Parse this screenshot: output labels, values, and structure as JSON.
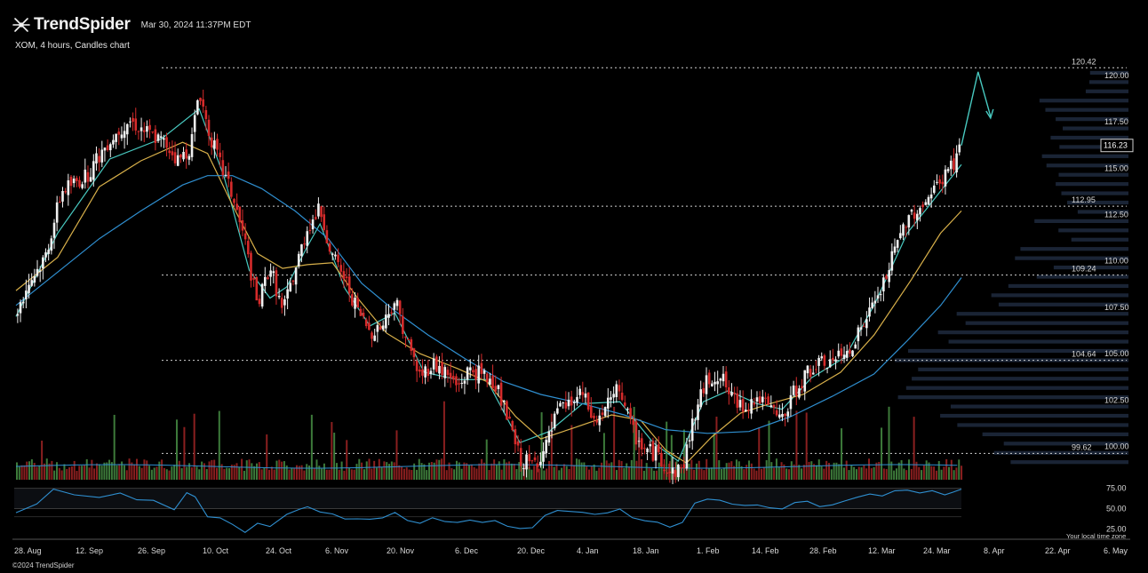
{
  "header": {
    "brand": "TrendSpider",
    "timestamp": "Mar 30, 2024 11:37PM EDT",
    "subtitle": "XOM, 4 hours, Candles chart"
  },
  "footer": {
    "copyright": "©2024 TrendSpider",
    "tz_note": "Your local time zone"
  },
  "colors": {
    "background": "#000000",
    "up_candle": "#f0f0f0",
    "down_candle": "#d62b2b",
    "ma_fast": "#48c9c0",
    "ma_mid": "#d8b04a",
    "ma_slow": "#2f8fd0",
    "volume_up": "#3d7a3a",
    "volume_down": "#8a1f1f",
    "volume_profile": "#1a2435",
    "rsi_line": "#2f8fd0",
    "projection": "#48c9c0"
  },
  "chart_data": {
    "type": "candlestick",
    "symbol": "XOM",
    "interval": "4 hours",
    "y_range": [
      98.2,
      121.2
    ],
    "y_ticks": [
      "120.00",
      "117.50",
      "115.00",
      "112.50",
      "110.00",
      "107.50",
      "105.00",
      "102.50",
      "100.00"
    ],
    "x_ticks": [
      "28. Aug",
      "12. Sep",
      "26. Sep",
      "10. Oct",
      "24. Oct",
      "6. Nov",
      "20. Nov",
      "6. Dec",
      "20. Dec",
      "4. Jan",
      "18. Jan",
      "1. Feb",
      "14. Feb",
      "28. Feb",
      "12. Mar",
      "24. Mar",
      "8. Apr",
      "22. Apr",
      "6. May"
    ],
    "last_price": "116.23",
    "levels": [
      {
        "label": "120.42",
        "value": 120.42
      },
      {
        "label": "112.95",
        "value": 112.95
      },
      {
        "label": "109.24",
        "value": 109.24
      },
      {
        "label": "104.64",
        "value": 104.64
      },
      {
        "label": "99.62",
        "value": 99.62
      }
    ],
    "close_path": [
      {
        "x": 0,
        "y": 107.2
      },
      {
        "x": 6,
        "y": 108.8
      },
      {
        "x": 14,
        "y": 110.2
      },
      {
        "x": 22,
        "y": 113.8
      },
      {
        "x": 34,
        "y": 114.6
      },
      {
        "x": 44,
        "y": 116.4
      },
      {
        "x": 54,
        "y": 117.6
      },
      {
        "x": 62,
        "y": 117.0
      },
      {
        "x": 72,
        "y": 116.3
      },
      {
        "x": 78,
        "y": 115.4
      },
      {
        "x": 84,
        "y": 116.2
      },
      {
        "x": 88,
        "y": 119.3
      },
      {
        "x": 92,
        "y": 117.2
      },
      {
        "x": 98,
        "y": 115.2
      },
      {
        "x": 104,
        "y": 113.5
      },
      {
        "x": 110,
        "y": 111.0
      },
      {
        "x": 116,
        "y": 107.5
      },
      {
        "x": 122,
        "y": 109.8
      },
      {
        "x": 128,
        "y": 107.2
      },
      {
        "x": 134,
        "y": 109.5
      },
      {
        "x": 140,
        "y": 111.8
      },
      {
        "x": 146,
        "y": 112.8
      },
      {
        "x": 152,
        "y": 110.2
      },
      {
        "x": 158,
        "y": 109.0
      },
      {
        "x": 164,
        "y": 107.3
      },
      {
        "x": 170,
        "y": 106.2
      },
      {
        "x": 176,
        "y": 106.5
      },
      {
        "x": 182,
        "y": 108.0
      },
      {
        "x": 188,
        "y": 105.6
      },
      {
        "x": 194,
        "y": 103.8
      },
      {
        "x": 200,
        "y": 104.5
      },
      {
        "x": 206,
        "y": 104.0
      },
      {
        "x": 212,
        "y": 103.2
      },
      {
        "x": 218,
        "y": 104.2
      },
      {
        "x": 224,
        "y": 103.8
      },
      {
        "x": 230,
        "y": 103.5
      },
      {
        "x": 236,
        "y": 101.5
      },
      {
        "x": 242,
        "y": 99.3
      },
      {
        "x": 248,
        "y": 99.0
      },
      {
        "x": 254,
        "y": 99.8
      },
      {
        "x": 260,
        "y": 101.8
      },
      {
        "x": 266,
        "y": 102.3
      },
      {
        "x": 272,
        "y": 102.8
      },
      {
        "x": 278,
        "y": 101.2
      },
      {
        "x": 284,
        "y": 102.2
      },
      {
        "x": 290,
        "y": 103.2
      },
      {
        "x": 296,
        "y": 100.8
      },
      {
        "x": 302,
        "y": 99.8
      },
      {
        "x": 308,
        "y": 99.6
      },
      {
        "x": 314,
        "y": 98.6
      },
      {
        "x": 320,
        "y": 98.8
      },
      {
        "x": 326,
        "y": 101.8
      },
      {
        "x": 332,
        "y": 103.6
      },
      {
        "x": 338,
        "y": 103.9
      },
      {
        "x": 344,
        "y": 102.5
      },
      {
        "x": 350,
        "y": 102.2
      },
      {
        "x": 356,
        "y": 102.6
      },
      {
        "x": 362,
        "y": 102.0
      },
      {
        "x": 368,
        "y": 101.4
      },
      {
        "x": 374,
        "y": 103.0
      },
      {
        "x": 380,
        "y": 104.0
      },
      {
        "x": 386,
        "y": 104.4
      },
      {
        "x": 392,
        "y": 104.6
      },
      {
        "x": 398,
        "y": 104.9
      },
      {
        "x": 404,
        "y": 106.0
      },
      {
        "x": 410,
        "y": 107.2
      },
      {
        "x": 416,
        "y": 108.6
      },
      {
        "x": 422,
        "y": 110.5
      },
      {
        "x": 428,
        "y": 112.4
      },
      {
        "x": 434,
        "y": 112.9
      },
      {
        "x": 440,
        "y": 113.6
      },
      {
        "x": 446,
        "y": 114.7
      },
      {
        "x": 450,
        "y": 115.2
      },
      {
        "x": 454,
        "y": 116.23
      }
    ],
    "series": [
      {
        "name": "",
        "values": [
          {
            "x": 0,
            "y": 107.0
          },
          {
            "x": 20,
            "y": 111.5
          },
          {
            "x": 45,
            "y": 115.5
          },
          {
            "x": 70,
            "y": 116.6
          },
          {
            "x": 88,
            "y": 118.2
          },
          {
            "x": 100,
            "y": 114.5
          },
          {
            "x": 112,
            "y": 109.5
          },
          {
            "x": 122,
            "y": 108.0
          },
          {
            "x": 130,
            "y": 108.6
          },
          {
            "x": 140,
            "y": 110.8
          },
          {
            "x": 146,
            "y": 112.0
          },
          {
            "x": 158,
            "y": 108.5
          },
          {
            "x": 170,
            "y": 106.5
          },
          {
            "x": 182,
            "y": 107.2
          },
          {
            "x": 196,
            "y": 104.0
          },
          {
            "x": 212,
            "y": 103.6
          },
          {
            "x": 226,
            "y": 103.6
          },
          {
            "x": 242,
            "y": 100.2
          },
          {
            "x": 256,
            "y": 100.8
          },
          {
            "x": 272,
            "y": 102.3
          },
          {
            "x": 290,
            "y": 102.4
          },
          {
            "x": 306,
            "y": 100.2
          },
          {
            "x": 318,
            "y": 99.2
          },
          {
            "x": 330,
            "y": 102.4
          },
          {
            "x": 342,
            "y": 103.0
          },
          {
            "x": 356,
            "y": 102.3
          },
          {
            "x": 368,
            "y": 102.0
          },
          {
            "x": 382,
            "y": 103.7
          },
          {
            "x": 398,
            "y": 104.8
          },
          {
            "x": 412,
            "y": 107.6
          },
          {
            "x": 428,
            "y": 111.5
          },
          {
            "x": 440,
            "y": 113.2
          },
          {
            "x": 454,
            "y": 115.2
          }
        ]
      },
      {
        "name": "",
        "values": [
          {
            "x": 0,
            "y": 108.4
          },
          {
            "x": 20,
            "y": 110.2
          },
          {
            "x": 40,
            "y": 114.0
          },
          {
            "x": 60,
            "y": 115.4
          },
          {
            "x": 80,
            "y": 116.4
          },
          {
            "x": 92,
            "y": 115.8
          },
          {
            "x": 104,
            "y": 113.0
          },
          {
            "x": 116,
            "y": 110.4
          },
          {
            "x": 128,
            "y": 109.6
          },
          {
            "x": 140,
            "y": 109.8
          },
          {
            "x": 152,
            "y": 109.9
          },
          {
            "x": 164,
            "y": 108.0
          },
          {
            "x": 178,
            "y": 106.1
          },
          {
            "x": 194,
            "y": 105.0
          },
          {
            "x": 212,
            "y": 104.2
          },
          {
            "x": 226,
            "y": 103.5
          },
          {
            "x": 240,
            "y": 101.6
          },
          {
            "x": 252,
            "y": 100.4
          },
          {
            "x": 268,
            "y": 101.0
          },
          {
            "x": 286,
            "y": 101.7
          },
          {
            "x": 300,
            "y": 101.4
          },
          {
            "x": 312,
            "y": 99.8
          },
          {
            "x": 322,
            "y": 99.1
          },
          {
            "x": 334,
            "y": 100.5
          },
          {
            "x": 348,
            "y": 101.8
          },
          {
            "x": 362,
            "y": 102.3
          },
          {
            "x": 378,
            "y": 102.8
          },
          {
            "x": 396,
            "y": 104.0
          },
          {
            "x": 412,
            "y": 106.0
          },
          {
            "x": 430,
            "y": 109.0
          },
          {
            "x": 444,
            "y": 111.5
          },
          {
            "x": 454,
            "y": 112.7
          }
        ]
      },
      {
        "name": "",
        "values": [
          {
            "x": 0,
            "y": 107.6
          },
          {
            "x": 20,
            "y": 109.4
          },
          {
            "x": 40,
            "y": 111.2
          },
          {
            "x": 60,
            "y": 112.7
          },
          {
            "x": 80,
            "y": 114.1
          },
          {
            "x": 92,
            "y": 114.6
          },
          {
            "x": 104,
            "y": 114.6
          },
          {
            "x": 118,
            "y": 113.9
          },
          {
            "x": 134,
            "y": 112.7
          },
          {
            "x": 150,
            "y": 111.2
          },
          {
            "x": 166,
            "y": 108.8
          },
          {
            "x": 182,
            "y": 107.3
          },
          {
            "x": 198,
            "y": 106.0
          },
          {
            "x": 216,
            "y": 104.7
          },
          {
            "x": 234,
            "y": 103.5
          },
          {
            "x": 252,
            "y": 102.8
          },
          {
            "x": 272,
            "y": 102.3
          },
          {
            "x": 292,
            "y": 101.7
          },
          {
            "x": 312,
            "y": 100.9
          },
          {
            "x": 332,
            "y": 100.7
          },
          {
            "x": 352,
            "y": 100.8
          },
          {
            "x": 372,
            "y": 101.6
          },
          {
            "x": 392,
            "y": 102.7
          },
          {
            "x": 412,
            "y": 103.9
          },
          {
            "x": 428,
            "y": 105.7
          },
          {
            "x": 444,
            "y": 107.6
          },
          {
            "x": 454,
            "y": 109.1
          }
        ]
      }
    ],
    "projection": [
      {
        "x": 454,
        "y": 116.23
      },
      {
        "x": 462,
        "y": 120.2
      },
      {
        "x": 468,
        "y": 117.8
      }
    ],
    "rsi": {
      "y_ticks": [
        "75.00",
        "50.00",
        "25.00"
      ],
      "values": [
        [
          0,
          45
        ],
        [
          10,
          56
        ],
        [
          18,
          72
        ],
        [
          28,
          66
        ],
        [
          40,
          64
        ],
        [
          50,
          70
        ],
        [
          58,
          60
        ],
        [
          66,
          62
        ],
        [
          76,
          48
        ],
        [
          82,
          68
        ],
        [
          86,
          64
        ],
        [
          92,
          40
        ],
        [
          98,
          38
        ],
        [
          104,
          30
        ],
        [
          110,
          22
        ],
        [
          116,
          32
        ],
        [
          122,
          28
        ],
        [
          130,
          44
        ],
        [
          136,
          48
        ],
        [
          140,
          52
        ],
        [
          146,
          44
        ],
        [
          152,
          42
        ],
        [
          158,
          38
        ],
        [
          164,
          36
        ],
        [
          170,
          38
        ],
        [
          176,
          40
        ],
        [
          182,
          46
        ],
        [
          188,
          36
        ],
        [
          194,
          32
        ],
        [
          200,
          38
        ],
        [
          206,
          34
        ],
        [
          212,
          32
        ],
        [
          218,
          36
        ],
        [
          224,
          34
        ],
        [
          230,
          36
        ],
        [
          236,
          30
        ],
        [
          242,
          24
        ],
        [
          248,
          26
        ],
        [
          254,
          40
        ],
        [
          260,
          46
        ],
        [
          266,
          48
        ],
        [
          272,
          46
        ],
        [
          278,
          42
        ],
        [
          284,
          46
        ],
        [
          290,
          48
        ],
        [
          296,
          38
        ],
        [
          302,
          36
        ],
        [
          308,
          32
        ],
        [
          314,
          28
        ],
        [
          320,
          32
        ],
        [
          326,
          56
        ],
        [
          332,
          60
        ],
        [
          338,
          62
        ],
        [
          344,
          54
        ],
        [
          350,
          52
        ],
        [
          356,
          54
        ],
        [
          362,
          50
        ],
        [
          368,
          48
        ],
        [
          374,
          56
        ],
        [
          380,
          58
        ],
        [
          386,
          54
        ],
        [
          392,
          56
        ],
        [
          398,
          60
        ],
        [
          404,
          62
        ],
        [
          410,
          66
        ],
        [
          416,
          64
        ],
        [
          422,
          70
        ],
        [
          428,
          72
        ],
        [
          434,
          68
        ],
        [
          440,
          72
        ],
        [
          446,
          66
        ],
        [
          450,
          70
        ],
        [
          454,
          72
        ]
      ]
    }
  }
}
